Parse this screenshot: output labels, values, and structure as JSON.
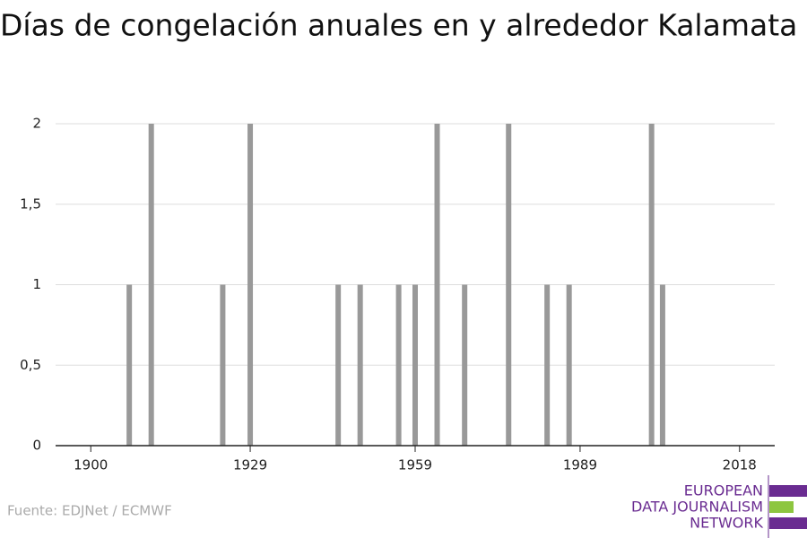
{
  "chart_data": {
    "type": "bar",
    "title": "Días de congelación anuales en y alrededor Kalamata",
    "x": [
      1907,
      1911,
      1924,
      1929,
      1945,
      1949,
      1956,
      1959,
      1963,
      1968,
      1976,
      1983,
      1987,
      2002,
      2004
    ],
    "values": [
      1,
      2,
      1,
      2,
      1,
      1,
      1,
      1,
      2,
      1,
      2,
      1,
      1,
      2,
      1
    ],
    "color": "#999999",
    "xlim": [
      1893.6,
      2024.4
    ],
    "xticks": [
      1900,
      1929,
      1959,
      1989,
      2018
    ],
    "ylim": [
      0,
      2
    ],
    "yticks": [
      0,
      {
        "value": 0.5,
        "label": "0,5"
      },
      1,
      {
        "value": 1.5,
        "label": "1,5"
      },
      2
    ],
    "grid": true,
    "source": "Fuente: EDJNet / ECMWF"
  },
  "logo": {
    "lines": [
      "EUROPEAN",
      "DATA JOURNALISM",
      "NETWORK"
    ]
  }
}
